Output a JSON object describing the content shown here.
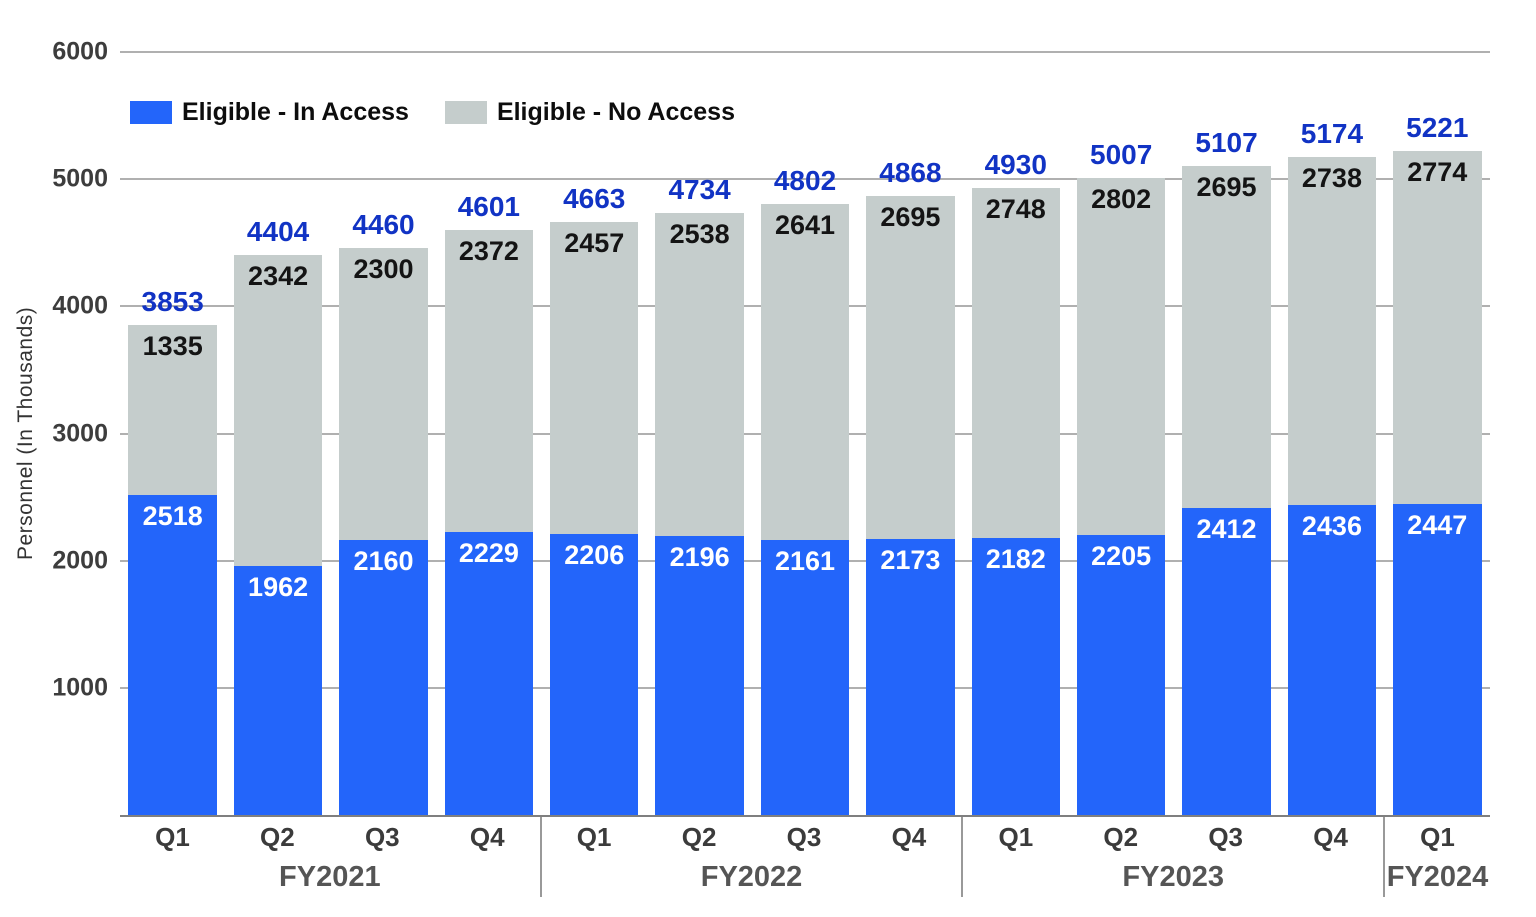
{
  "chart_data": {
    "type": "bar",
    "stacked": true,
    "title": "",
    "ylabel": "Personnel (In Thousands)",
    "ylim": [
      0,
      6000
    ],
    "yticks": [
      1000,
      2000,
      3000,
      4000,
      5000,
      6000
    ],
    "grid": true,
    "legend_position": "top-left",
    "legend": [
      {
        "label": "Eligible - In Access",
        "color": "#2365fa"
      },
      {
        "label": "Eligible - No Access",
        "color": "#c5cdcc"
      }
    ],
    "groups": [
      {
        "label": "FY2021",
        "bars": [
          {
            "quarter": "Q1",
            "total": 3853,
            "in_access": 2518,
            "no_access": 1335
          },
          {
            "quarter": "Q2",
            "total": 4404,
            "in_access": 1962,
            "no_access": 2342
          },
          {
            "quarter": "Q3",
            "total": 4460,
            "in_access": 2160,
            "no_access": 2300
          },
          {
            "quarter": "Q4",
            "total": 4601,
            "in_access": 2229,
            "no_access": 2372
          }
        ]
      },
      {
        "label": "FY2022",
        "bars": [
          {
            "quarter": "Q1",
            "total": 4663,
            "in_access": 2206,
            "no_access": 2457
          },
          {
            "quarter": "Q2",
            "total": 4734,
            "in_access": 2196,
            "no_access": 2538
          },
          {
            "quarter": "Q3",
            "total": 4802,
            "in_access": 2161,
            "no_access": 2641
          },
          {
            "quarter": "Q4",
            "total": 4868,
            "in_access": 2173,
            "no_access": 2695
          }
        ]
      },
      {
        "label": "FY2023",
        "bars": [
          {
            "quarter": "Q1",
            "total": 4930,
            "in_access": 2182,
            "no_access": 2748
          },
          {
            "quarter": "Q2",
            "total": 5007,
            "in_access": 2205,
            "no_access": 2802
          },
          {
            "quarter": "Q3",
            "total": 5107,
            "in_access": 2412,
            "no_access": 2695
          },
          {
            "quarter": "Q4",
            "total": 5174,
            "in_access": 2436,
            "no_access": 2738
          }
        ]
      },
      {
        "label": "FY2024",
        "bars": [
          {
            "quarter": "Q1",
            "total": 5221,
            "in_access": 2447,
            "no_access": 2774
          }
        ]
      }
    ]
  },
  "colors": {
    "in_access_bar": "#2365fa",
    "no_access_bar": "#c5cdcc",
    "total_label": "#1133c4",
    "in_access_value": "#ffffff",
    "no_access_value": "#141414",
    "gridline": "#b0b0b0",
    "axis_line": "#7f7f7f",
    "separator": "#999999",
    "ytick_text": "#3d3d3d",
    "quarter_text": "#3b3b3b",
    "fy_text": "#555555",
    "legend_text": "#0d0d0d"
  }
}
